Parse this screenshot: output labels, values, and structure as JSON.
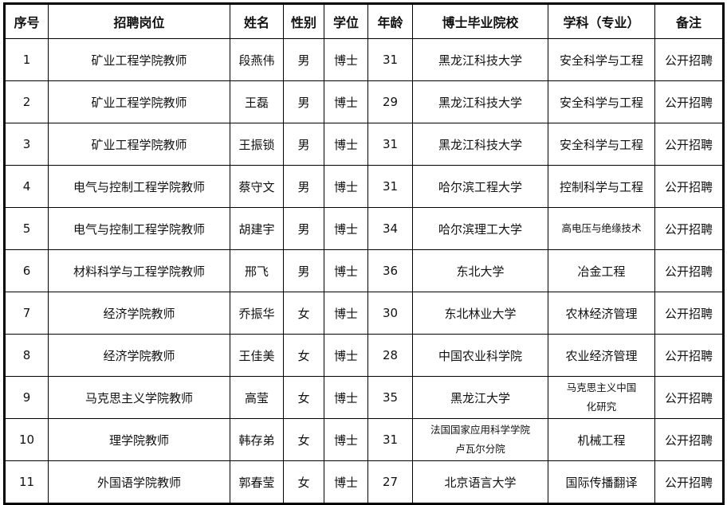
{
  "headers": [
    "序号",
    "招聘岗位",
    "姓名",
    "性别",
    "学位",
    "年龄",
    "博士毕业院校",
    "学科（专业）",
    "备注"
  ],
  "rows": [
    [
      "1",
      "矿业工程学院教师",
      "段燕伟",
      "男",
      "博士",
      "31",
      "黑龙江科技大学",
      "安全科学与工程",
      "公开招聘"
    ],
    [
      "2",
      "矿业工程学院教师",
      "王磊",
      "男",
      "博士",
      "29",
      "黑龙江科技大学",
      "安全科学与工程",
      "公开招聘"
    ],
    [
      "3",
      "矿业工程学院教师",
      "王振锁",
      "男",
      "博士",
      "31",
      "黑龙江科技大学",
      "安全科学与工程",
      "公开招聘"
    ],
    [
      "4",
      "电气与控制工程学院教师",
      "蔡守文",
      "男",
      "博士",
      "31",
      "哈尔滨工程大学",
      "控制科学与工程",
      "公开招聘"
    ],
    [
      "5",
      "电气与控制工程学院教师",
      "胡建宇",
      "男",
      "博士",
      "34",
      "哈尔滨理工大学",
      "高电压与绝缘技术",
      "公开招聘"
    ],
    [
      "6",
      "材料科学与工程学院教师",
      "邢飞",
      "男",
      "博士",
      "36",
      "东北大学",
      "冶金工程",
      "公开招聘"
    ],
    [
      "7",
      "经济学院教师",
      "乔振华",
      "女",
      "博士",
      "30",
      "东北林业大学",
      "农林经济管理",
      "公开招聘"
    ],
    [
      "8",
      "经济学院教师",
      "王佳美",
      "女",
      "博士",
      "28",
      "中国农业科学院",
      "农业经济管理",
      "公开招聘"
    ],
    [
      "9",
      "马克思主义学院教师",
      "高莹",
      "女",
      "博士",
      "35",
      "黑龙江大学",
      "马克思主义中国化研究",
      "公开招聘"
    ],
    [
      "10",
      "理学院教师",
      "韩存弟",
      "女",
      "博士",
      "31",
      "法国国家应用科学学院卢瓦尔分院",
      "机械工程",
      "公开招聘"
    ],
    [
      "11",
      "外国语学院教师",
      "郭春莹",
      "女",
      "博士",
      "27",
      "北京语言大学",
      "国际传播翻译",
      "公开招聘"
    ]
  ]
}
